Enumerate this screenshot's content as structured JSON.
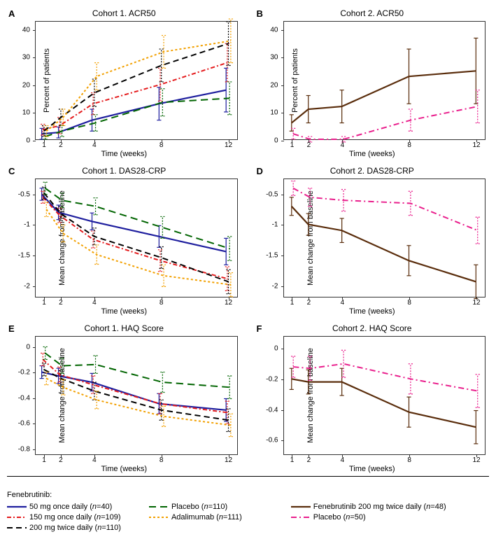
{
  "x_values": [
    1,
    2,
    4,
    8,
    12
  ],
  "x_label": "Time (weeks)",
  "panels": {
    "A": {
      "label": "A",
      "title": "Cohort 1. ACR50",
      "ylabel": "Percent of patients",
      "y_ticks": [
        0,
        10,
        20,
        30,
        40
      ],
      "ylim": [
        0,
        43
      ],
      "series_keys": [
        "s50",
        "s150",
        "s200",
        "placebo",
        "adalimumab"
      ]
    },
    "B": {
      "label": "B",
      "title": "Cohort 2. ACR50",
      "ylabel": "Percent of patients",
      "y_ticks": [
        0,
        10,
        20,
        30,
        40
      ],
      "ylim": [
        0,
        43
      ],
      "series_keys": [
        "fene200c2",
        "placebo_c2"
      ]
    },
    "C": {
      "label": "C",
      "title": "Cohort 1. DAS28-CRP",
      "ylabel": "Mean change from baseline",
      "y_ticks": [
        -2.0,
        -1.5,
        -1.0,
        -0.5
      ],
      "ylim": [
        -2.2,
        -0.25
      ],
      "series_keys": [
        "s50",
        "s150",
        "s200",
        "placebo",
        "adalimumab"
      ]
    },
    "D": {
      "label": "D",
      "title": "Cohort 2. DAS28-CRP",
      "ylabel": "Mean change from baseline",
      "y_ticks": [
        -2.0,
        -1.5,
        -1.0,
        -0.5
      ],
      "ylim": [
        -2.2,
        -0.25
      ],
      "series_keys": [
        "fene200c2",
        "placebo_c2"
      ]
    },
    "E": {
      "label": "E",
      "title": "Cohort 1. HAQ Score",
      "ylabel": "Mean change from baseline",
      "y_ticks": [
        -0.8,
        -0.6,
        -0.4,
        -0.2,
        0.0
      ],
      "ylim": [
        -0.85,
        0.08
      ],
      "series_keys": [
        "s50",
        "s150",
        "s200",
        "placebo",
        "adalimumab"
      ]
    },
    "F": {
      "label": "F",
      "title": "Cohort 2. HAQ Score",
      "ylabel": "Mean change from baseline",
      "y_ticks": [
        -0.6,
        -0.4,
        -0.2,
        0.0
      ],
      "ylim": [
        -0.7,
        0.08
      ],
      "series_keys": [
        "fene200c2",
        "placebo_c2"
      ]
    }
  },
  "series": {
    "s50": {
      "color": "#1e1e9e",
      "dash": "",
      "width": 2.2,
      "label_html": "50 mg once daily (<i>n</i>=40)"
    },
    "s150": {
      "color": "#e41a1c",
      "dash": "6 3 2 3",
      "width": 2.0,
      "label_html": "150 mg once daily (<i>n</i>=109)"
    },
    "s200": {
      "color": "#000000",
      "dash": "8 5",
      "width": 2.0,
      "label_html": "200 mg twice daily (<i>n</i>=110)"
    },
    "placebo": {
      "color": "#006400",
      "dash": "10 6",
      "width": 2.0,
      "label_html": "Placebo (<i>n</i>=110)"
    },
    "adalimumab": {
      "color": "#f2a000",
      "dash": "3 3",
      "width": 2.0,
      "label_html": "Adalimumab (<i>n</i>=111)"
    },
    "fene200c2": {
      "color": "#5a2d0c",
      "dash": "",
      "width": 2.2,
      "label_html": "Fenebrutinib 200 mg twice daily (<i>n</i>=48)"
    },
    "placebo_c2": {
      "color": "#e91e8c",
      "dash": "8 4 2 4",
      "width": 2.0,
      "label_html": "Placebo (<i>n</i>=50)"
    }
  },
  "data": {
    "A": {
      "s50": {
        "y": [
          2,
          2.5,
          7,
          13,
          18
        ],
        "err": [
          2,
          2,
          4,
          6,
          8
        ]
      },
      "s150": {
        "y": [
          3.5,
          5,
          13,
          20,
          28
        ],
        "err": [
          2,
          3,
          4,
          6,
          7
        ]
      },
      "s200": {
        "y": [
          3,
          8,
          17,
          27,
          35
        ],
        "err": [
          2,
          3,
          5,
          6,
          8
        ]
      },
      "placebo": {
        "y": [
          1,
          3,
          6,
          13.5,
          15
        ],
        "err": [
          1,
          2,
          3,
          5,
          6
        ]
      },
      "adalimumab": {
        "y": [
          3,
          8,
          23,
          32,
          36
        ],
        "err": [
          2,
          3,
          5,
          6,
          8
        ]
      }
    },
    "B": {
      "fene200c2": {
        "y": [
          6,
          11,
          12,
          23,
          25
        ],
        "err": [
          3,
          5,
          6,
          10,
          12
        ]
      },
      "placebo_c2": {
        "y": [
          2,
          0,
          0,
          7,
          12
        ],
        "err": [
          2,
          1,
          1,
          4,
          6
        ]
      }
    },
    "C": {
      "s50": {
        "y": [
          -0.5,
          -0.8,
          -0.95,
          -1.2,
          -1.45
        ],
        "err": [
          0.1,
          0.12,
          0.14,
          0.18,
          0.22
        ]
      },
      "s150": {
        "y": [
          -0.55,
          -0.85,
          -1.25,
          -1.6,
          -1.9
        ],
        "err": [
          0.1,
          0.12,
          0.14,
          0.18,
          0.2
        ]
      },
      "s200": {
        "y": [
          -0.48,
          -0.82,
          -1.2,
          -1.55,
          -1.95
        ],
        "err": [
          0.1,
          0.12,
          0.14,
          0.18,
          0.2
        ]
      },
      "placebo": {
        "y": [
          -0.4,
          -0.6,
          -0.7,
          -1.05,
          -1.4
        ],
        "err": [
          0.1,
          0.12,
          0.14,
          0.18,
          0.2
        ]
      },
      "adalimumab": {
        "y": [
          -0.75,
          -1.15,
          -1.5,
          -1.85,
          -2.0
        ],
        "err": [
          0.12,
          0.14,
          0.16,
          0.18,
          0.2
        ]
      }
    },
    "D": {
      "fene200c2": {
        "y": [
          -0.7,
          -1.0,
          -1.1,
          -1.6,
          -1.95
        ],
        "err": [
          0.15,
          0.18,
          0.2,
          0.25,
          0.28
        ]
      },
      "placebo_c2": {
        "y": [
          -0.4,
          -0.55,
          -0.6,
          -0.65,
          -1.1
        ],
        "err": [
          0.12,
          0.15,
          0.18,
          0.2,
          0.22
        ]
      }
    },
    "E": {
      "s50": {
        "y": [
          -0.2,
          -0.23,
          -0.28,
          -0.45,
          -0.5
        ],
        "err": [
          0.05,
          0.06,
          0.07,
          0.08,
          0.09
        ]
      },
      "s150": {
        "y": [
          -0.1,
          -0.22,
          -0.3,
          -0.45,
          -0.52
        ],
        "err": [
          0.05,
          0.06,
          0.07,
          0.08,
          0.09
        ]
      },
      "s200": {
        "y": [
          -0.18,
          -0.25,
          -0.35,
          -0.5,
          -0.58
        ],
        "err": [
          0.05,
          0.06,
          0.07,
          0.08,
          0.09
        ]
      },
      "placebo": {
        "y": [
          -0.05,
          -0.15,
          -0.14,
          -0.28,
          -0.32
        ],
        "err": [
          0.05,
          0.06,
          0.07,
          0.08,
          0.09
        ]
      },
      "adalimumab": {
        "y": [
          -0.25,
          -0.32,
          -0.42,
          -0.55,
          -0.62
        ],
        "err": [
          0.05,
          0.06,
          0.07,
          0.08,
          0.09
        ]
      }
    },
    "F": {
      "fene200c2": {
        "y": [
          -0.2,
          -0.22,
          -0.22,
          -0.42,
          -0.52
        ],
        "err": [
          0.07,
          0.08,
          0.09,
          0.1,
          0.11
        ]
      },
      "placebo_c2": {
        "y": [
          -0.12,
          -0.13,
          -0.1,
          -0.2,
          -0.28
        ],
        "err": [
          0.07,
          0.08,
          0.09,
          0.1,
          0.11
        ]
      }
    }
  },
  "legend_header": "Fenebrutinib:",
  "xlim": [
    0.5,
    12.5
  ]
}
